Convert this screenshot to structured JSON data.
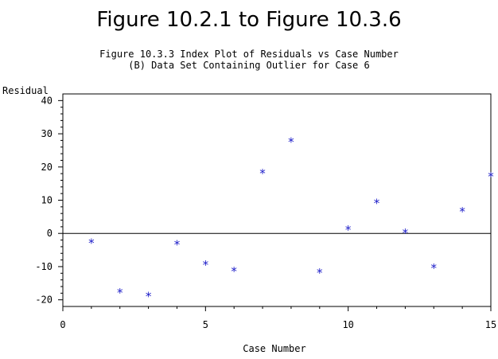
{
  "page": {
    "main_title": "Figure 10.2.1 to Figure 10.3.6"
  },
  "chart_data": {
    "type": "scatter",
    "title": "Figure 10.3.3 Index Plot of Residuals vs Case Number",
    "subtitle": "(B) Data Set Containing Outlier for Case 6",
    "xlabel": "Case Number",
    "ylabel": "Residual",
    "xlim": [
      0,
      15
    ],
    "ylim": [
      -22,
      42
    ],
    "xticks": [
      0,
      5,
      10,
      15
    ],
    "yticks": [
      -20,
      -10,
      0,
      10,
      20,
      30,
      40
    ],
    "reference_line_y": 0,
    "grid": false,
    "marker": "*",
    "marker_color": "#1a1ac8",
    "x": [
      1,
      2,
      3,
      4,
      5,
      6,
      7,
      8,
      9,
      10,
      11,
      12,
      13,
      14,
      15
    ],
    "y": [
      -2.5,
      -17.5,
      -18.5,
      -3,
      -9,
      -11,
      18.5,
      28,
      -11.5,
      1.5,
      9.5,
      0.5,
      -10,
      7,
      17.5
    ]
  }
}
